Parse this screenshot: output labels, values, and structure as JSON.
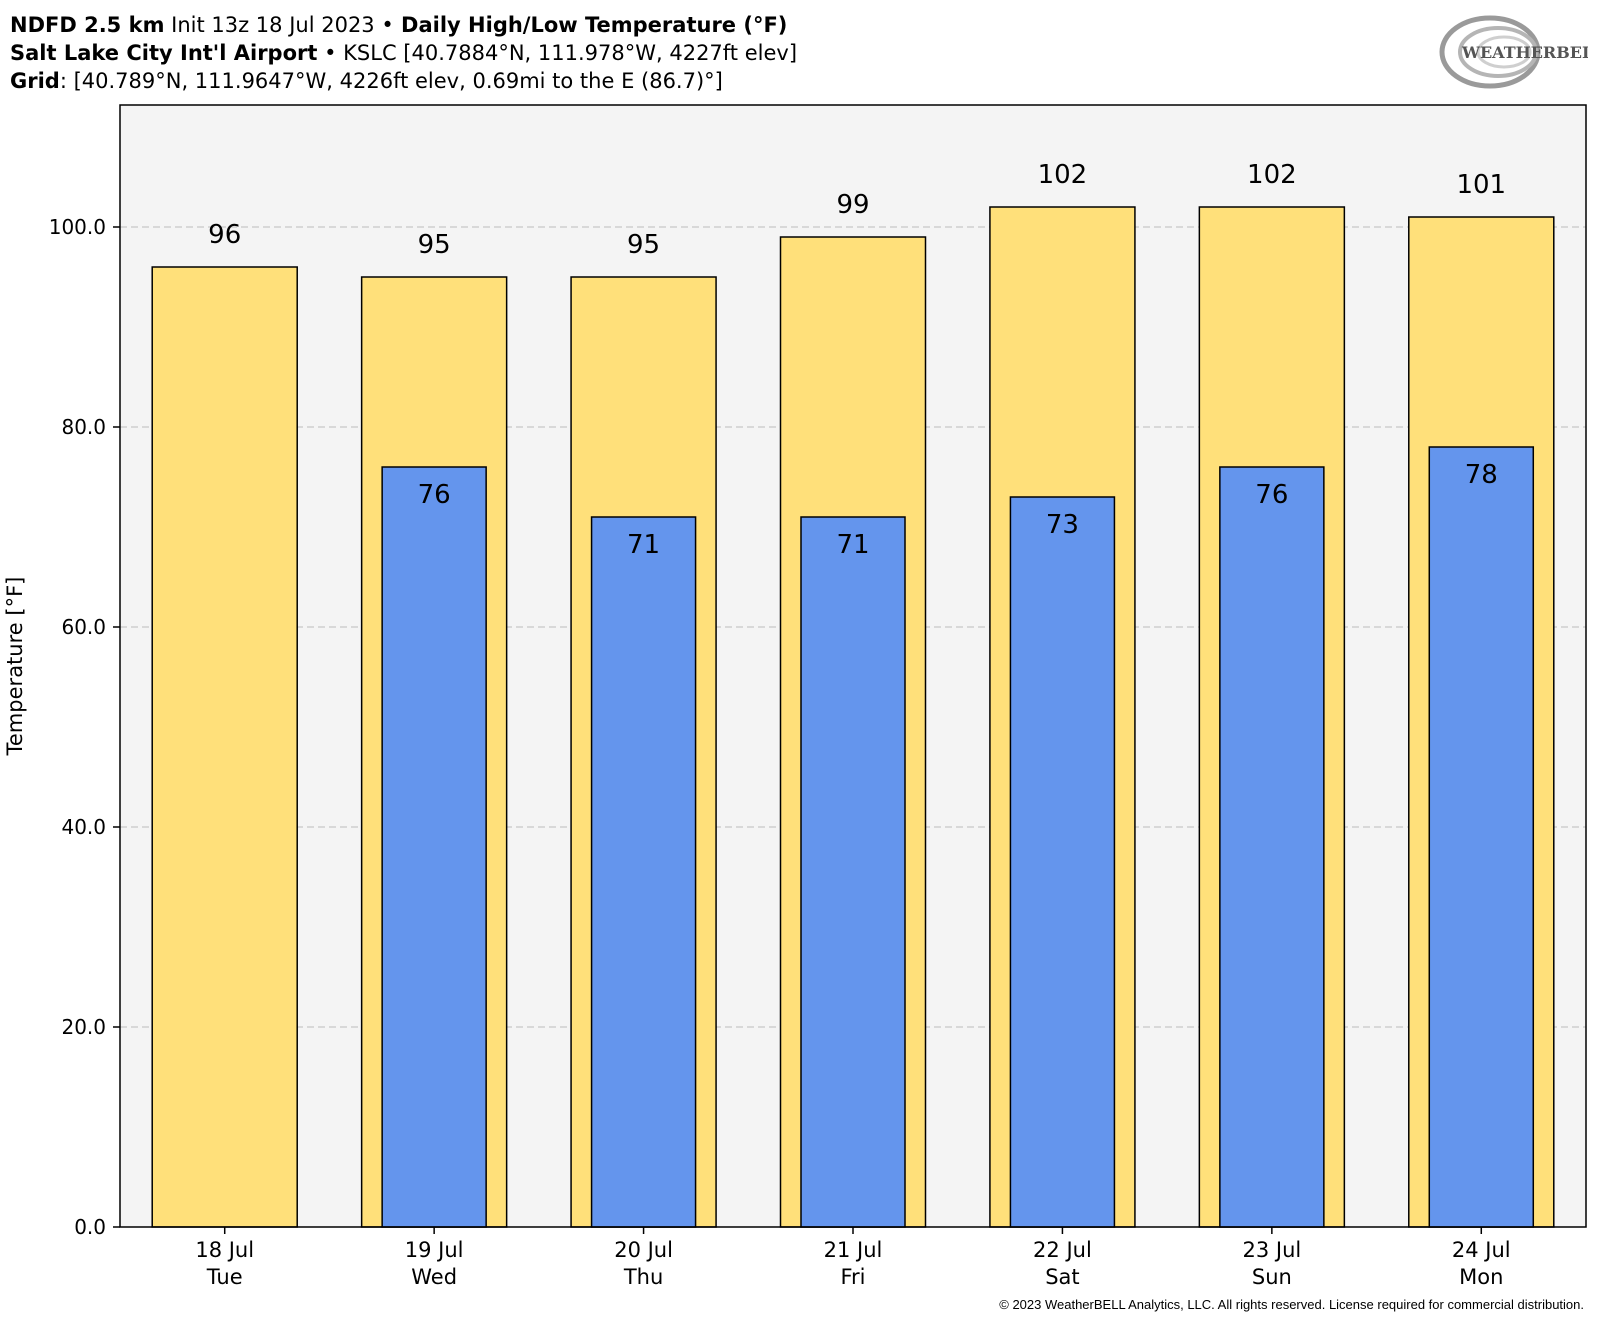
{
  "header": {
    "line1": {
      "model": "NDFD 2.5 km",
      "init": " Init 13z 18 Jul 2023 ",
      "bullet": "•",
      "title": " Daily High/Low Temperature (°F)"
    },
    "line2": {
      "station_name": "Salt Lake City Int'l Airport",
      "bullet": " • ",
      "station_info": "KSLC [40.7884°N, 111.978°W, 4227ft elev]"
    },
    "line3": {
      "label": "Grid",
      "info": ": [40.789°N, 111.9647°W, 4226ft elev, 0.69mi to the E (86.7)°]"
    }
  },
  "logo": {
    "text": "WEATHERBELL"
  },
  "copyright": "© 2023 WeatherBELL Analytics, LLC. All rights reserved. License required for commercial distribution.",
  "colors": {
    "high": "#FFE07A",
    "low": "#6495ED",
    "plot_bg": "#F4F4F4",
    "grid": "#BBBBBB"
  },
  "chart_data": {
    "type": "bar",
    "ylabel": "Temperature [°F]",
    "ylim": [
      0,
      112
    ],
    "yticks": [
      "0.0",
      "20.0",
      "40.0",
      "60.0",
      "80.0",
      "100.0"
    ],
    "ytick_values": [
      0,
      20,
      40,
      60,
      80,
      100
    ],
    "grid": true,
    "categories": [
      {
        "date": "18 Jul",
        "day": "Tue"
      },
      {
        "date": "19 Jul",
        "day": "Wed"
      },
      {
        "date": "20 Jul",
        "day": "Thu"
      },
      {
        "date": "21 Jul",
        "day": "Fri"
      },
      {
        "date": "22 Jul",
        "day": "Sat"
      },
      {
        "date": "23 Jul",
        "day": "Sun"
      },
      {
        "date": "24 Jul",
        "day": "Mon"
      }
    ],
    "series": [
      {
        "key": "high",
        "values": [
          96,
          95,
          95,
          99,
          102,
          102,
          101
        ]
      },
      {
        "key": "low",
        "values": [
          null,
          76,
          71,
          71,
          73,
          76,
          78
        ]
      }
    ]
  }
}
